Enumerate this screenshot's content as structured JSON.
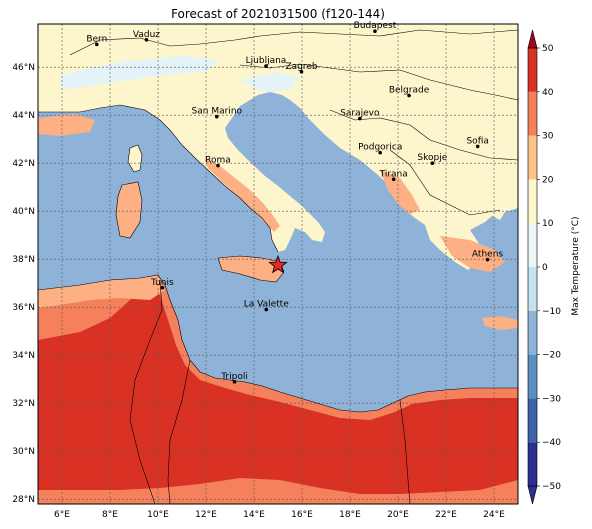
{
  "title": "Forecast of 2021031500 (f120-144)",
  "map": {
    "lon_range": [
      5,
      25
    ],
    "lat_range": [
      27.8,
      47.8
    ],
    "lon_ticks": [
      6,
      8,
      10,
      12,
      14,
      16,
      18,
      20,
      22,
      24
    ],
    "lat_ticks": [
      28,
      30,
      32,
      34,
      36,
      38,
      40,
      42,
      44,
      46
    ],
    "lon_tick_labels": [
      "6°E",
      "8°E",
      "10°E",
      "12°E",
      "14°E",
      "16°E",
      "18°E",
      "20°E",
      "22°E",
      "24°E"
    ],
    "lat_tick_labels": [
      "28°N",
      "30°N",
      "32°N",
      "34°N",
      "36°N",
      "38°N",
      "40°N",
      "42°N",
      "44°N",
      "46°N"
    ],
    "grid": true
  },
  "cities": [
    {
      "name": "Bern",
      "lon": 7.45,
      "lat": 46.95
    },
    {
      "name": "Vaduz",
      "lon": 9.52,
      "lat": 47.14
    },
    {
      "name": "Budapest",
      "lon": 19.04,
      "lat": 47.5
    },
    {
      "name": "Ljubljana",
      "lon": 14.5,
      "lat": 46.05
    },
    {
      "name": "Zagreb",
      "lon": 15.98,
      "lat": 45.81
    },
    {
      "name": "Belgrade",
      "lon": 20.46,
      "lat": 44.82
    },
    {
      "name": "San Marino",
      "lon": 12.45,
      "lat": 43.94
    },
    {
      "name": "Sarajevo",
      "lon": 18.41,
      "lat": 43.86
    },
    {
      "name": "Sofia",
      "lon": 23.32,
      "lat": 42.7
    },
    {
      "name": "Podgorica",
      "lon": 19.26,
      "lat": 42.44
    },
    {
      "name": "Skopje",
      "lon": 21.43,
      "lat": 42.0
    },
    {
      "name": "Roma",
      "lon": 12.5,
      "lat": 41.9
    },
    {
      "name": "Tirana",
      "lon": 19.82,
      "lat": 41.33
    },
    {
      "name": "Athens",
      "lon": 23.73,
      "lat": 37.98
    },
    {
      "name": "Tunis",
      "lon": 10.18,
      "lat": 36.81
    },
    {
      "name": "La Valette",
      "lon": 14.51,
      "lat": 35.9
    },
    {
      "name": "Tripoli",
      "lon": 13.19,
      "lat": 32.89
    }
  ],
  "marker": {
    "symbol": "star",
    "lon": 15.0,
    "lat": 37.75,
    "color": "#e8262a"
  },
  "colorbar": {
    "label": "Max Temperature (°C)",
    "min": -50,
    "max": 50,
    "ticks": [
      -50,
      -40,
      -30,
      -20,
      -10,
      0,
      10,
      20,
      30,
      40,
      50
    ],
    "tick_labels": [
      "−50",
      "−40",
      "−30",
      "−20",
      "−10",
      "0",
      "10",
      "20",
      "30",
      "40",
      "50"
    ],
    "colors": [
      "#2b2f8f",
      "#3d64a8",
      "#5b8fc0",
      "#8fb3d8",
      "#c6e1ef",
      "#eaf6f8",
      "#fdf5cb",
      "#fcc287",
      "#f47f58",
      "#d93224",
      "#a3051f"
    ],
    "extend": "both"
  },
  "palette": {
    "sea": "#8fb3d8",
    "land_mild": "#fdf5cb",
    "land_warm": "#fcb083",
    "land_hot": "#f4815c",
    "land_very_hot": "#d93224",
    "land_cool": "#e3f3f8"
  }
}
